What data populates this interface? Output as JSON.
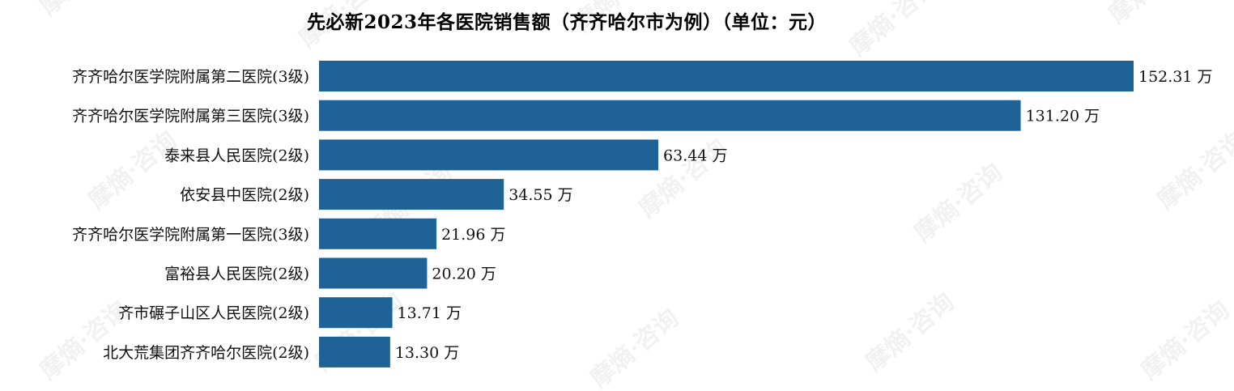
{
  "colors": {
    "bar": "#1f6296",
    "text": "#111111",
    "background": "#ffffff"
  },
  "watermark": "摩熵·咨询",
  "chart_data": {
    "type": "bar",
    "orientation": "horizontal",
    "title": "先必新2023年各医院销售额（齐齐哈尔市为例）（单位：元）",
    "categories": [
      "齐齐哈尔医学院附属第二医院(3级)",
      "齐齐哈尔医学院附属第三医院(3级)",
      "泰来县人民医院(2级)",
      "依安县中医院(2级)",
      "齐齐哈尔医学院附属第一医院(3级)",
      "富裕县人民医院(2级)",
      "齐市碾子山区人民医院(2级)",
      "北大荒集团齐齐哈尔医院(2级)"
    ],
    "values": [
      152.31,
      131.2,
      63.44,
      34.55,
      21.96,
      20.2,
      13.71,
      13.3
    ],
    "value_labels": [
      "152.31 万",
      "131.20 万",
      "63.44 万",
      "34.55 万",
      "21.96 万",
      "20.20 万",
      "13.71 万",
      "13.30 万"
    ],
    "xlim": [
      0,
      152.31
    ],
    "grid": false,
    "legend": "none"
  }
}
